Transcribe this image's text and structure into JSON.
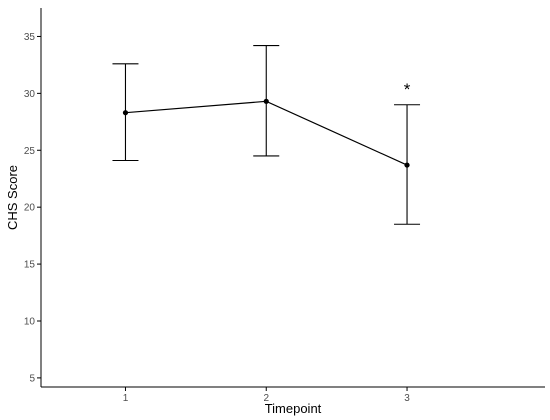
{
  "chart_data": {
    "type": "line",
    "title": "",
    "xlabel": "Timepoint",
    "ylabel": "CHS Score",
    "x": [
      1,
      2,
      3
    ],
    "x_tick_labels": [
      "1",
      "2",
      "3"
    ],
    "xlim": [
      0.4,
      3.98
    ],
    "y_ticks": [
      5,
      10,
      15,
      20,
      25,
      30,
      35
    ],
    "y_tick_labels": [
      "5",
      "10",
      "15",
      "20",
      "25",
      "30",
      "35"
    ],
    "ylim": [
      4.2,
      37.5
    ],
    "grid": false,
    "legend": "none",
    "series": [
      {
        "values": [
          28.3,
          29.3,
          23.7
        ],
        "error_lower": [
          24.1,
          24.5,
          18.5
        ],
        "error_upper": [
          32.6,
          34.2,
          29.0
        ]
      }
    ],
    "annotations": [
      {
        "x": 3,
        "y": 30.4,
        "text": "*"
      }
    ],
    "colors": {
      "line": "#000000",
      "axis": "#000000",
      "tick_text": "#4d4d4d"
    }
  }
}
